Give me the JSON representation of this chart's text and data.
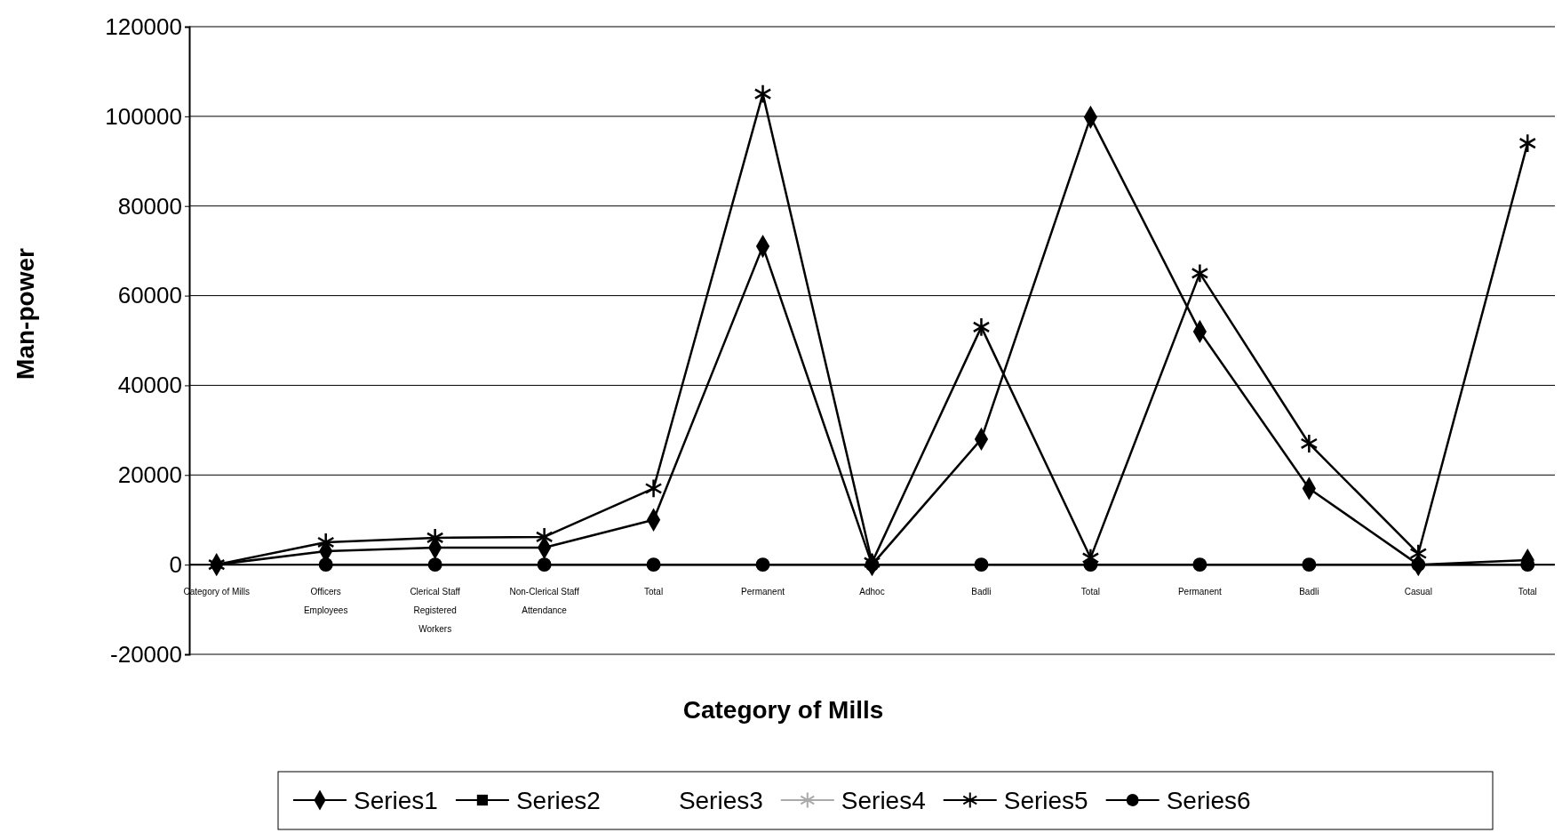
{
  "chart_data": {
    "type": "line",
    "xlabel": "Category of Mills",
    "ylabel": "Man-power",
    "categories": [
      "Category of Mills",
      "Officers\nEmployees",
      "Clerical Staff\nRegistered\nWorkers",
      "Non-Clerical Staff\nAttendance",
      "Total",
      "Permanent",
      "Adhoc",
      "Badli",
      "Total",
      "Permanent",
      "Badli",
      "Casual",
      "Total"
    ],
    "series": [
      {
        "name": "Series1",
        "color": "#000000",
        "marker": "diamond",
        "values": [
          0,
          3000,
          3800,
          3800,
          10000,
          71000,
          0,
          28000,
          99800,
          52000,
          17000,
          0,
          1000
        ]
      },
      {
        "name": "Series2",
        "color": "#000000",
        "marker": "square",
        "values": [
          null,
          null,
          null,
          null,
          null,
          null,
          null,
          null,
          null,
          null,
          null,
          null,
          null
        ]
      },
      {
        "name": "Series3",
        "color": "#000000",
        "marker": "none",
        "line_style": "none",
        "values": [
          null,
          null,
          null,
          null,
          null,
          null,
          null,
          null,
          null,
          null,
          null,
          null,
          null
        ]
      },
      {
        "name": "Series4",
        "color": "#aaaaaa",
        "marker": "cross",
        "values": [
          null,
          null,
          null,
          null,
          null,
          null,
          null,
          null,
          null,
          null,
          null,
          null,
          null
        ]
      },
      {
        "name": "Series5",
        "color": "#000000",
        "marker": "cross",
        "values": [
          0,
          5000,
          6000,
          6200,
          17000,
          105000,
          500,
          53000,
          1500,
          65000,
          27000,
          2500,
          94000
        ]
      },
      {
        "name": "Series6",
        "color": "#000000",
        "marker": "circle",
        "values": [
          null,
          0,
          0,
          0,
          0,
          0,
          0,
          0,
          0,
          0,
          0,
          0,
          0
        ]
      }
    ],
    "ylim": [
      -20000,
      120000
    ],
    "yticks": [
      -20000,
      0,
      20000,
      40000,
      60000,
      80000,
      100000,
      120000
    ],
    "grid": "y",
    "legend": "bottom"
  }
}
